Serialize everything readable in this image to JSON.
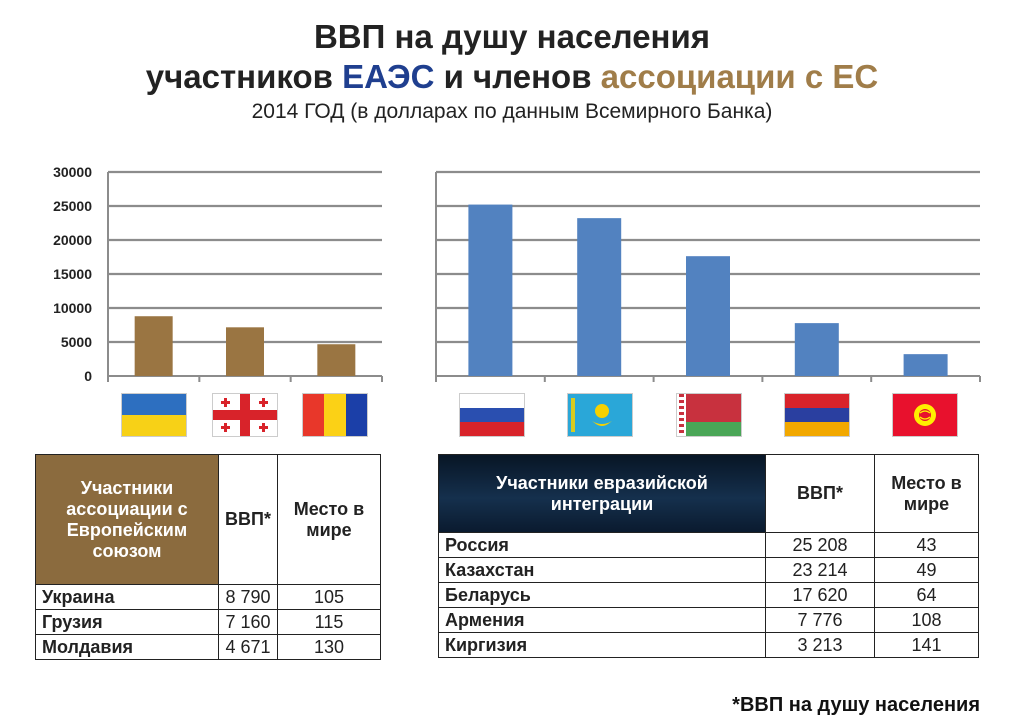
{
  "header": {
    "line1": "ВВП на душу населения",
    "line2_prefix": "участников ",
    "line2_blue": "ЕАЭС",
    "line2_mid": " и членов ",
    "line2_brown": "ассоциации с ЕС",
    "line3": "2014 ГОД (в долларах по данным Всемирного Банка)"
  },
  "colors": {
    "blue_accent": "#1f3f8f",
    "brown_accent": "#a07d49",
    "bar_brown": "#9a7542",
    "bar_blue": "#5282c0"
  },
  "chart_data": [
    {
      "type": "bar",
      "categories": [
        "Украина",
        "Грузия",
        "Молдавия"
      ],
      "values": [
        8790,
        7160,
        4671
      ],
      "ylim": [
        0,
        30000
      ],
      "yticks": [
        "0",
        "5000",
        "10000",
        "15000",
        "20000",
        "25000",
        "30000"
      ],
      "grid": true,
      "color": "#9a7542",
      "category_flags": [
        "ukraine-flag",
        "georgia-flag",
        "moldova-flag"
      ]
    },
    {
      "type": "bar",
      "categories": [
        "Россия",
        "Казахстан",
        "Беларусь",
        "Армения",
        "Киргизия"
      ],
      "values": [
        25208,
        23214,
        17620,
        7776,
        3213
      ],
      "ylim": [
        0,
        30000
      ],
      "grid": true,
      "color": "#5282c0",
      "category_flags": [
        "russia-flag",
        "kazakhstan-flag",
        "belarus-flag",
        "armenia-flag",
        "kyrgyzstan-flag"
      ]
    }
  ],
  "table_left": {
    "header_name": "Участники ассоциации с Европейским союзом",
    "header_gdp": "ВВП*",
    "header_rank": "Место в мире",
    "rows": [
      {
        "name": "Украина",
        "gdp": "8 790",
        "rank": "105"
      },
      {
        "name": "Грузия",
        "gdp": "7 160",
        "rank": "115"
      },
      {
        "name": "Молдавия",
        "gdp": "4 671",
        "rank": "130"
      }
    ]
  },
  "table_right": {
    "header_name": "Участники евразийской интеграции",
    "header_gdp": "ВВП*",
    "header_rank": "Место в мире",
    "rows": [
      {
        "name": "Россия",
        "gdp": "25 208",
        "rank": "43"
      },
      {
        "name": "Казахстан",
        "gdp": "23 214",
        "rank": "49"
      },
      {
        "name": "Беларусь",
        "gdp": "17 620",
        "rank": "64"
      },
      {
        "name": "Армения",
        "gdp": "7 776",
        "rank": "108"
      },
      {
        "name": "Киргизия",
        "gdp": "3 213",
        "rank": "141"
      }
    ]
  },
  "footnote": "*ВВП на душу населения"
}
